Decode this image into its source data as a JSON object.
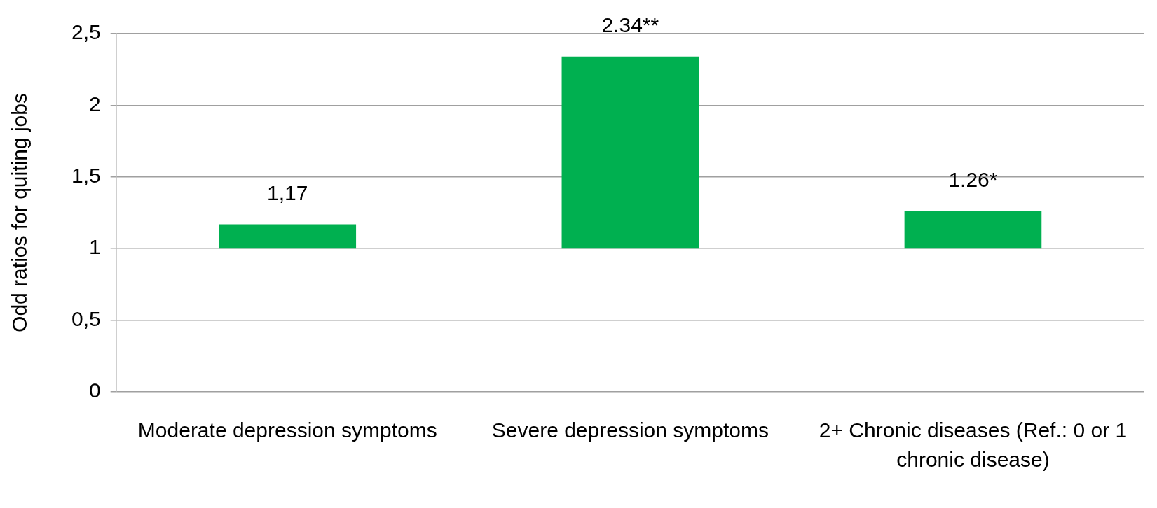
{
  "chart_data": {
    "type": "bar",
    "ylabel": "Odd ratios for quiting jobs",
    "categories": [
      "Moderate depression symptoms",
      "Severe depression symptoms",
      "2+ Chronic diseases (Ref.: 0 or 1 chronic disease)"
    ],
    "base": [
      1,
      1,
      1
    ],
    "values": [
      0.17,
      1.34,
      0.26
    ],
    "value_labels": [
      "1,17",
      "2.34**",
      "1.26*"
    ],
    "color": "#00b050",
    "ylim": [
      0,
      2.5
    ],
    "yticks": [
      0,
      {
        "value": 0.5,
        "label": "0,5"
      },
      1,
      {
        "value": 1.5,
        "label": "1,5"
      },
      2,
      {
        "value": 2.5,
        "label": "2,5"
      }
    ],
    "grid": "y",
    "legend": false
  }
}
